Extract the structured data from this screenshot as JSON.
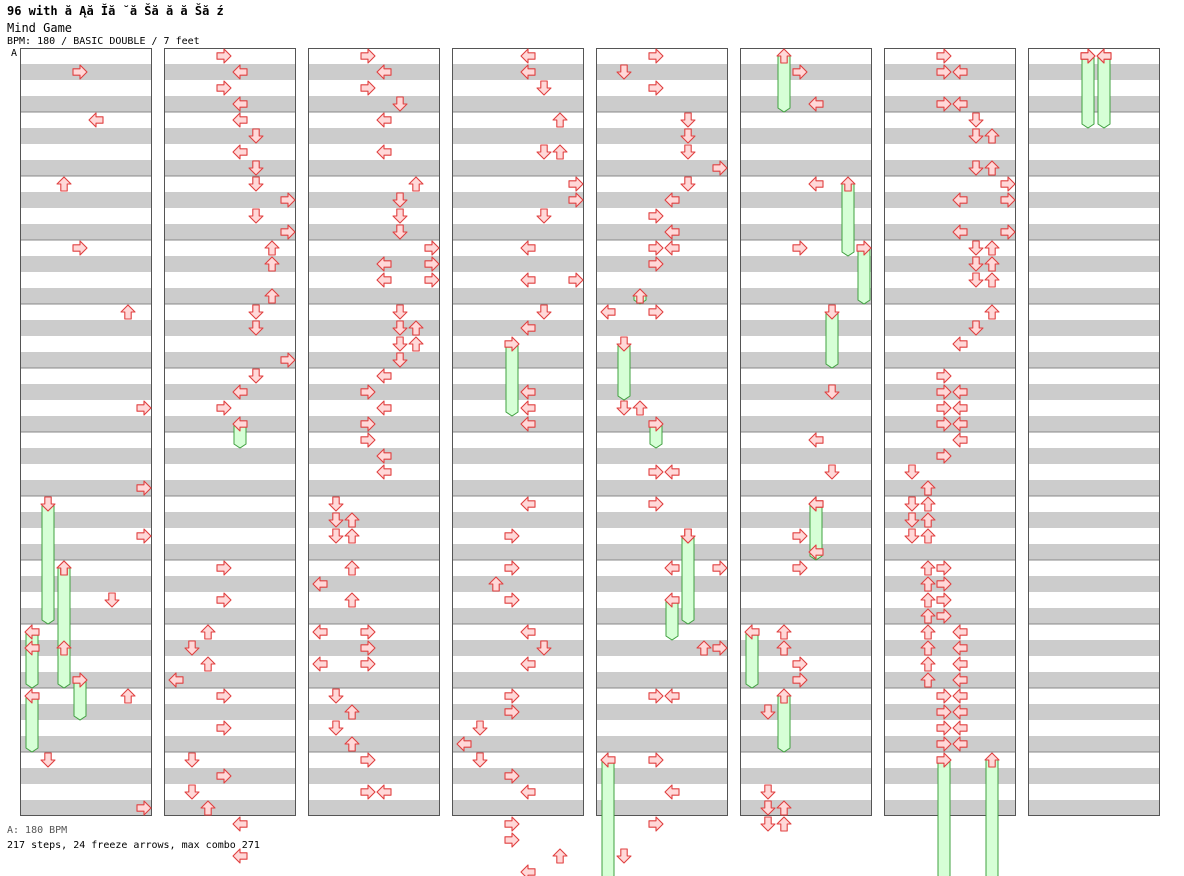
{
  "header": {
    "title": "96 with ă Ąă Ĭă ˘ă Šă  ă  ă Šă ź",
    "song": "Mind Game",
    "info": "BPM: 180 / BASIC DOUBLE / 7 feet",
    "bpm_marker": "A"
  },
  "footer": {
    "bpm_line": "A: 180 BPM",
    "stats": "217 steps, 24 freeze arrows, max combo 271"
  },
  "colors": {
    "arrow_fill": "#ffd8d8",
    "arrow_stroke": "#e04040",
    "freeze_fill": "#d6ffd6",
    "freeze_stroke": "#40a040",
    "stripe": "#cccccc",
    "border": "#555555"
  },
  "chart_data": {
    "type": "step-chart",
    "lanes": 8,
    "lane_directions": [
      "left",
      "down",
      "up",
      "right",
      "left",
      "down",
      "up",
      "right"
    ],
    "columns": 8,
    "measures_per_column": 12,
    "rows_per_measure": 4,
    "notes": [
      [
        1,
        0,
        1,
        3
      ],
      [
        1,
        1,
        0,
        4
      ],
      [
        1,
        2,
        0,
        2
      ],
      [
        1,
        3,
        0,
        3
      ],
      [
        1,
        4,
        0,
        6
      ],
      [
        1,
        5,
        2,
        7
      ],
      [
        1,
        6,
        3,
        7
      ],
      [
        1,
        7,
        2,
        7
      ],
      [
        1,
        8,
        0,
        2
      ],
      [
        1,
        8,
        2,
        5
      ],
      [
        1,
        9,
        1,
        0
      ],
      [
        1,
        9,
        1,
        2
      ],
      [
        1,
        10,
        0,
        6
      ],
      [
        1,
        11,
        0,
        1
      ],
      [
        1,
        11,
        3,
        7
      ],
      [
        2,
        0,
        0,
        3
      ],
      [
        2,
        0,
        1,
        4
      ],
      [
        2,
        0,
        2,
        3
      ],
      [
        2,
        0,
        3,
        4
      ],
      [
        2,
        1,
        0,
        4
      ],
      [
        2,
        1,
        1,
        5
      ],
      [
        2,
        1,
        2,
        4
      ],
      [
        2,
        1,
        3,
        5
      ],
      [
        2,
        2,
        0,
        5
      ],
      [
        2,
        2,
        1,
        7
      ],
      [
        2,
        2,
        2,
        5
      ],
      [
        2,
        2,
        3,
        7
      ],
      [
        2,
        3,
        0,
        6
      ],
      [
        2,
        3,
        1,
        6
      ],
      [
        2,
        3,
        3,
        6
      ],
      [
        2,
        4,
        0,
        5
      ],
      [
        2,
        4,
        1,
        5
      ],
      [
        2,
        4,
        3,
        7
      ],
      [
        2,
        5,
        0,
        5
      ],
      [
        2,
        5,
        1,
        4
      ],
      [
        2,
        5,
        2,
        3
      ],
      [
        2,
        8,
        0,
        3
      ],
      [
        2,
        8,
        2,
        3
      ],
      [
        2,
        9,
        0,
        2
      ],
      [
        2,
        9,
        1,
        1
      ],
      [
        2,
        9,
        2,
        2
      ],
      [
        2,
        9,
        3,
        0
      ],
      [
        2,
        10,
        0,
        3
      ],
      [
        2,
        10,
        2,
        3
      ],
      [
        2,
        11,
        0,
        1
      ],
      [
        2,
        11,
        1,
        3
      ],
      [
        2,
        11,
        2,
        1
      ],
      [
        2,
        11,
        3,
        2
      ],
      [
        2,
        12,
        0,
        4
      ],
      [
        2,
        12,
        2,
        4
      ],
      [
        3,
        0,
        0,
        3
      ],
      [
        3,
        0,
        1,
        4
      ],
      [
        3,
        0,
        2,
        3
      ],
      [
        3,
        0,
        3,
        5
      ],
      [
        3,
        1,
        0,
        4
      ],
      [
        3,
        1,
        2,
        4
      ],
      [
        3,
        2,
        0,
        6
      ],
      [
        3,
        2,
        1,
        5
      ],
      [
        3,
        2,
        2,
        5
      ],
      [
        3,
        2,
        3,
        5
      ],
      [
        3,
        3,
        0,
        7
      ],
      [
        3,
        3,
        1,
        4
      ],
      [
        3,
        3,
        1,
        7
      ],
      [
        3,
        3,
        2,
        4
      ],
      [
        3,
        3,
        2,
        7
      ],
      [
        3,
        4,
        0,
        5
      ],
      [
        3,
        4,
        1,
        5
      ],
      [
        3,
        4,
        1,
        6
      ],
      [
        3,
        4,
        2,
        5
      ],
      [
        3,
        4,
        2,
        6
      ],
      [
        3,
        4,
        3,
        5
      ],
      [
        3,
        5,
        0,
        4
      ],
      [
        3,
        5,
        1,
        3
      ],
      [
        3,
        5,
        2,
        4
      ],
      [
        3,
        5,
        3,
        3
      ],
      [
        3,
        6,
        0,
        3
      ],
      [
        3,
        6,
        1,
        4
      ],
      [
        3,
        6,
        2,
        4
      ],
      [
        3,
        7,
        0,
        1
      ],
      [
        3,
        7,
        1,
        1
      ],
      [
        3,
        7,
        1,
        2
      ],
      [
        3,
        7,
        2,
        1
      ],
      [
        3,
        7,
        2,
        2
      ],
      [
        3,
        8,
        0,
        2
      ],
      [
        3,
        8,
        1,
        0
      ],
      [
        3,
        8,
        2,
        2
      ],
      [
        3,
        9,
        0,
        0
      ],
      [
        3,
        9,
        0,
        3
      ],
      [
        3,
        9,
        1,
        3
      ],
      [
        3,
        9,
        2,
        0
      ],
      [
        3,
        9,
        2,
        3
      ],
      [
        3,
        10,
        0,
        1
      ],
      [
        3,
        10,
        1,
        2
      ],
      [
        3,
        10,
        2,
        1
      ],
      [
        3,
        10,
        3,
        2
      ],
      [
        3,
        11,
        0,
        3
      ],
      [
        3,
        11,
        2,
        3
      ],
      [
        3,
        11,
        2,
        4
      ],
      [
        4,
        0,
        0,
        4
      ],
      [
        4,
        0,
        1,
        4
      ],
      [
        4,
        0,
        2,
        5
      ],
      [
        4,
        1,
        0,
        6
      ],
      [
        4,
        1,
        2,
        5
      ],
      [
        4,
        1,
        2,
        6
      ],
      [
        4,
        2,
        0,
        7
      ],
      [
        4,
        2,
        1,
        7
      ],
      [
        4,
        2,
        2,
        5
      ],
      [
        4,
        3,
        0,
        4
      ],
      [
        4,
        3,
        2,
        4
      ],
      [
        4,
        3,
        2,
        7
      ],
      [
        4,
        4,
        0,
        5
      ],
      [
        4,
        4,
        1,
        4
      ],
      [
        4,
        5,
        1,
        4
      ],
      [
        4,
        5,
        2,
        4
      ],
      [
        4,
        5,
        3,
        4
      ],
      [
        4,
        7,
        0,
        4
      ],
      [
        4,
        7,
        2,
        3
      ],
      [
        4,
        8,
        0,
        3
      ],
      [
        4,
        8,
        1,
        2
      ],
      [
        4,
        8,
        2,
        3
      ],
      [
        4,
        9,
        0,
        4
      ],
      [
        4,
        9,
        1,
        5
      ],
      [
        4,
        9,
        2,
        4
      ],
      [
        4,
        10,
        0,
        3
      ],
      [
        4,
        10,
        1,
        3
      ],
      [
        4,
        10,
        2,
        1
      ],
      [
        4,
        10,
        3,
        0
      ],
      [
        4,
        11,
        0,
        1
      ],
      [
        4,
        11,
        1,
        3
      ],
      [
        4,
        11,
        2,
        4
      ],
      [
        4,
        12,
        0,
        3
      ],
      [
        4,
        12,
        1,
        3
      ],
      [
        4,
        12,
        2,
        6
      ],
      [
        4,
        12,
        3,
        4
      ],
      [
        5,
        0,
        0,
        3
      ],
      [
        5,
        0,
        1,
        1
      ],
      [
        5,
        0,
        2,
        3
      ],
      [
        5,
        1,
        0,
        5
      ],
      [
        5,
        1,
        1,
        5
      ],
      [
        5,
        1,
        2,
        5
      ],
      [
        5,
        1,
        3,
        7
      ],
      [
        5,
        2,
        0,
        5
      ],
      [
        5,
        2,
        1,
        4
      ],
      [
        5,
        2,
        2,
        3
      ],
      [
        5,
        2,
        3,
        4
      ],
      [
        5,
        3,
        0,
        3
      ],
      [
        5,
        3,
        0,
        4
      ],
      [
        5,
        3,
        1,
        3
      ],
      [
        5,
        4,
        0,
        0
      ],
      [
        5,
        4,
        0,
        3
      ],
      [
        5,
        5,
        2,
        1
      ],
      [
        5,
        5,
        2,
        2
      ],
      [
        5,
        6,
        2,
        3
      ],
      [
        5,
        6,
        2,
        4
      ],
      [
        5,
        7,
        0,
        3
      ],
      [
        5,
        7,
        2,
        5
      ],
      [
        5,
        8,
        0,
        4
      ],
      [
        5,
        8,
        0,
        7
      ],
      [
        5,
        9,
        1,
        6
      ],
      [
        5,
        9,
        1,
        7
      ],
      [
        5,
        10,
        0,
        3
      ],
      [
        5,
        10,
        0,
        4
      ],
      [
        5,
        11,
        0,
        3
      ],
      [
        5,
        11,
        2,
        4
      ],
      [
        5,
        12,
        0,
        3
      ],
      [
        5,
        12,
        2,
        1
      ],
      [
        6,
        0,
        1,
        3
      ],
      [
        6,
        0,
        3,
        4
      ],
      [
        6,
        2,
        0,
        4
      ],
      [
        6,
        3,
        0,
        3
      ],
      [
        6,
        5,
        1,
        5
      ],
      [
        6,
        6,
        0,
        4
      ],
      [
        6,
        6,
        2,
        5
      ],
      [
        6,
        7,
        0,
        4
      ],
      [
        6,
        7,
        2,
        3
      ],
      [
        6,
        7,
        3,
        4
      ],
      [
        6,
        8,
        0,
        3
      ],
      [
        6,
        9,
        0,
        2
      ],
      [
        6,
        9,
        1,
        2
      ],
      [
        6,
        9,
        2,
        3
      ],
      [
        6,
        9,
        3,
        3
      ],
      [
        6,
        10,
        1,
        1
      ],
      [
        6,
        11,
        2,
        1
      ],
      [
        6,
        11,
        3,
        1
      ],
      [
        6,
        11,
        3,
        2
      ],
      [
        6,
        12,
        0,
        1
      ],
      [
        6,
        12,
        0,
        2
      ],
      [
        7,
        0,
        0,
        3
      ],
      [
        7,
        0,
        1,
        3
      ],
      [
        7,
        0,
        1,
        4
      ],
      [
        7,
        0,
        3,
        3
      ],
      [
        7,
        0,
        3,
        4
      ],
      [
        7,
        1,
        0,
        5
      ],
      [
        7,
        1,
        1,
        5
      ],
      [
        7,
        1,
        1,
        6
      ],
      [
        7,
        1,
        3,
        5
      ],
      [
        7,
        1,
        3,
        6
      ],
      [
        7,
        2,
        0,
        7
      ],
      [
        7,
        2,
        1,
        4
      ],
      [
        7,
        2,
        1,
        7
      ],
      [
        7,
        2,
        3,
        4
      ],
      [
        7,
        2,
        3,
        7
      ],
      [
        7,
        3,
        0,
        5
      ],
      [
        7,
        3,
        0,
        6
      ],
      [
        7,
        3,
        1,
        5
      ],
      [
        7,
        3,
        1,
        6
      ],
      [
        7,
        3,
        2,
        5
      ],
      [
        7,
        3,
        2,
        6
      ],
      [
        7,
        4,
        0,
        6
      ],
      [
        7,
        4,
        1,
        5
      ],
      [
        7,
        4,
        2,
        4
      ],
      [
        7,
        5,
        0,
        3
      ],
      [
        7,
        5,
        1,
        3
      ],
      [
        7,
        5,
        1,
        4
      ],
      [
        7,
        5,
        2,
        3
      ],
      [
        7,
        5,
        2,
        4
      ],
      [
        7,
        5,
        3,
        3
      ],
      [
        7,
        5,
        3,
        4
      ],
      [
        7,
        6,
        0,
        4
      ],
      [
        7,
        6,
        1,
        3
      ],
      [
        7,
        6,
        2,
        1
      ],
      [
        7,
        6,
        3,
        2
      ],
      [
        7,
        7,
        0,
        1
      ],
      [
        7,
        7,
        0,
        2
      ],
      [
        7,
        7,
        1,
        1
      ],
      [
        7,
        7,
        1,
        2
      ],
      [
        7,
        7,
        2,
        1
      ],
      [
        7,
        7,
        2,
        2
      ],
      [
        7,
        8,
        0,
        2
      ],
      [
        7,
        8,
        0,
        3
      ],
      [
        7,
        8,
        1,
        2
      ],
      [
        7,
        8,
        1,
        3
      ],
      [
        7,
        8,
        2,
        2
      ],
      [
        7,
        8,
        2,
        3
      ],
      [
        7,
        8,
        3,
        2
      ],
      [
        7,
        8,
        3,
        3
      ],
      [
        7,
        9,
        0,
        2
      ],
      [
        7,
        9,
        0,
        4
      ],
      [
        7,
        9,
        1,
        2
      ],
      [
        7,
        9,
        1,
        4
      ],
      [
        7,
        9,
        2,
        2
      ],
      [
        7,
        9,
        2,
        4
      ],
      [
        7,
        9,
        3,
        2
      ],
      [
        7,
        9,
        3,
        4
      ],
      [
        7,
        10,
        0,
        3
      ],
      [
        7,
        10,
        0,
        4
      ],
      [
        7,
        10,
        1,
        3
      ],
      [
        7,
        10,
        1,
        4
      ],
      [
        7,
        10,
        2,
        3
      ],
      [
        7,
        10,
        2,
        4
      ],
      [
        7,
        10,
        3,
        3
      ],
      [
        7,
        10,
        3,
        4
      ],
      [
        8,
        0,
        0,
        3
      ],
      [
        8,
        0,
        0,
        4
      ]
    ],
    "freezes": [
      [
        1,
        7,
        0,
        8,
        3,
        1
      ],
      [
        1,
        8,
        0,
        9,
        3,
        2
      ],
      [
        1,
        9,
        0,
        9,
        3,
        0
      ],
      [
        1,
        10,
        0,
        10,
        3,
        0
      ],
      [
        1,
        9,
        3,
        10,
        1,
        3
      ],
      [
        2,
        5,
        3,
        6,
        0,
        4
      ],
      [
        4,
        4,
        2,
        5,
        2,
        3
      ],
      [
        5,
        3,
        3,
        3,
        3,
        2
      ],
      [
        5,
        4,
        2,
        5,
        1,
        1
      ],
      [
        5,
        5,
        3,
        6,
        0,
        3
      ],
      [
        5,
        7,
        2,
        8,
        3,
        5
      ],
      [
        5,
        8,
        2,
        9,
        0,
        4
      ],
      [
        5,
        11,
        0,
        12,
        3,
        0
      ],
      [
        6,
        0,
        0,
        0,
        3,
        2
      ],
      [
        6,
        2,
        0,
        3,
        0,
        6
      ],
      [
        6,
        3,
        0,
        3,
        3,
        7
      ],
      [
        6,
        4,
        0,
        4,
        3,
        5
      ],
      [
        6,
        7,
        0,
        7,
        3,
        4
      ],
      [
        6,
        9,
        0,
        9,
        3,
        0
      ],
      [
        6,
        10,
        0,
        10,
        3,
        2
      ],
      [
        7,
        11,
        0,
        12,
        3,
        3
      ],
      [
        7,
        11,
        0,
        12,
        3,
        6
      ],
      [
        8,
        0,
        0,
        1,
        0,
        3
      ],
      [
        8,
        0,
        0,
        1,
        0,
        4
      ]
    ]
  }
}
